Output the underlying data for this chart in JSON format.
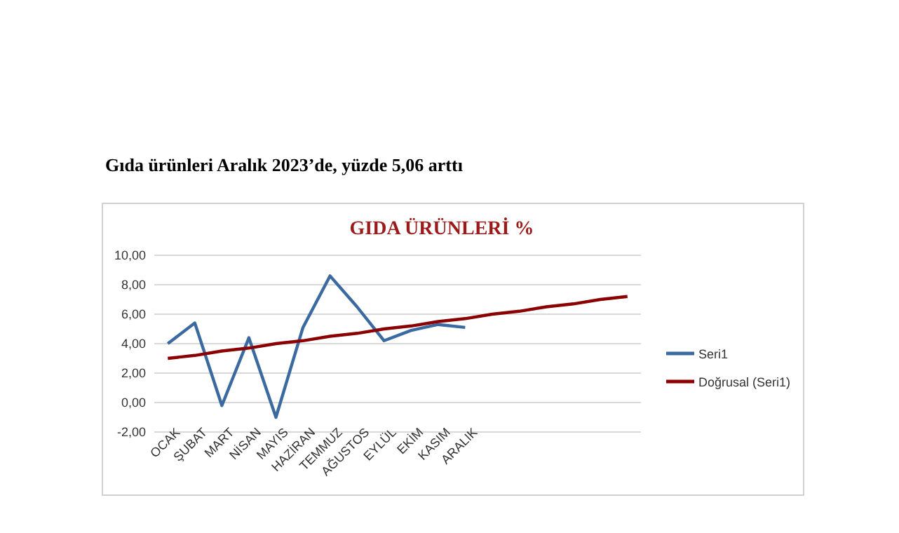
{
  "chart_data": {
    "type": "line",
    "title": "GIDA ÜRÜNLERİ %",
    "annotations": [
      "Gıda ürünleri Aralık 2023’de, yüzde 5,06 arttı"
    ],
    "categories": [
      "OCAK",
      "ŞUBAT",
      "MART",
      "NİSAN",
      "MAYIS",
      "HAZİRAN",
      "TEMMUZ",
      "AĞUSTOS",
      "EYLÜL",
      "EKİM",
      "KASIM",
      "ARALIK",
      null,
      null,
      null,
      null,
      null,
      null
    ],
    "series": [
      {
        "name": "Seri1",
        "color": "#3b6aa0",
        "values": [
          4.0,
          5.4,
          -0.2,
          4.4,
          -1.0,
          5.1,
          8.6,
          6.5,
          4.2,
          4.9,
          5.3,
          5.1,
          null,
          null,
          null,
          null,
          null,
          null
        ]
      },
      {
        "name": "Doğrusal (Seri1)",
        "color": "#8b0000",
        "values": [
          3.0,
          3.2,
          3.5,
          3.7,
          4.0,
          4.2,
          4.5,
          4.7,
          5.0,
          5.2,
          5.5,
          5.7,
          6.0,
          6.2,
          6.5,
          6.7,
          7.0,
          7.2
        ]
      }
    ],
    "ylim": [
      -2,
      10
    ],
    "yticks": [
      {
        "value": -2,
        "label": "-2,00"
      },
      {
        "value": 0,
        "label": "0,00"
      },
      {
        "value": 2,
        "label": "2,00"
      },
      {
        "value": 4,
        "label": "4,00"
      },
      {
        "value": 6,
        "label": "6,00"
      },
      {
        "value": 8,
        "label": "8,00"
      },
      {
        "value": 10,
        "label": "10,00"
      }
    ],
    "grid": "y",
    "legend": "right",
    "marker": "none",
    "line_style": "solid"
  }
}
